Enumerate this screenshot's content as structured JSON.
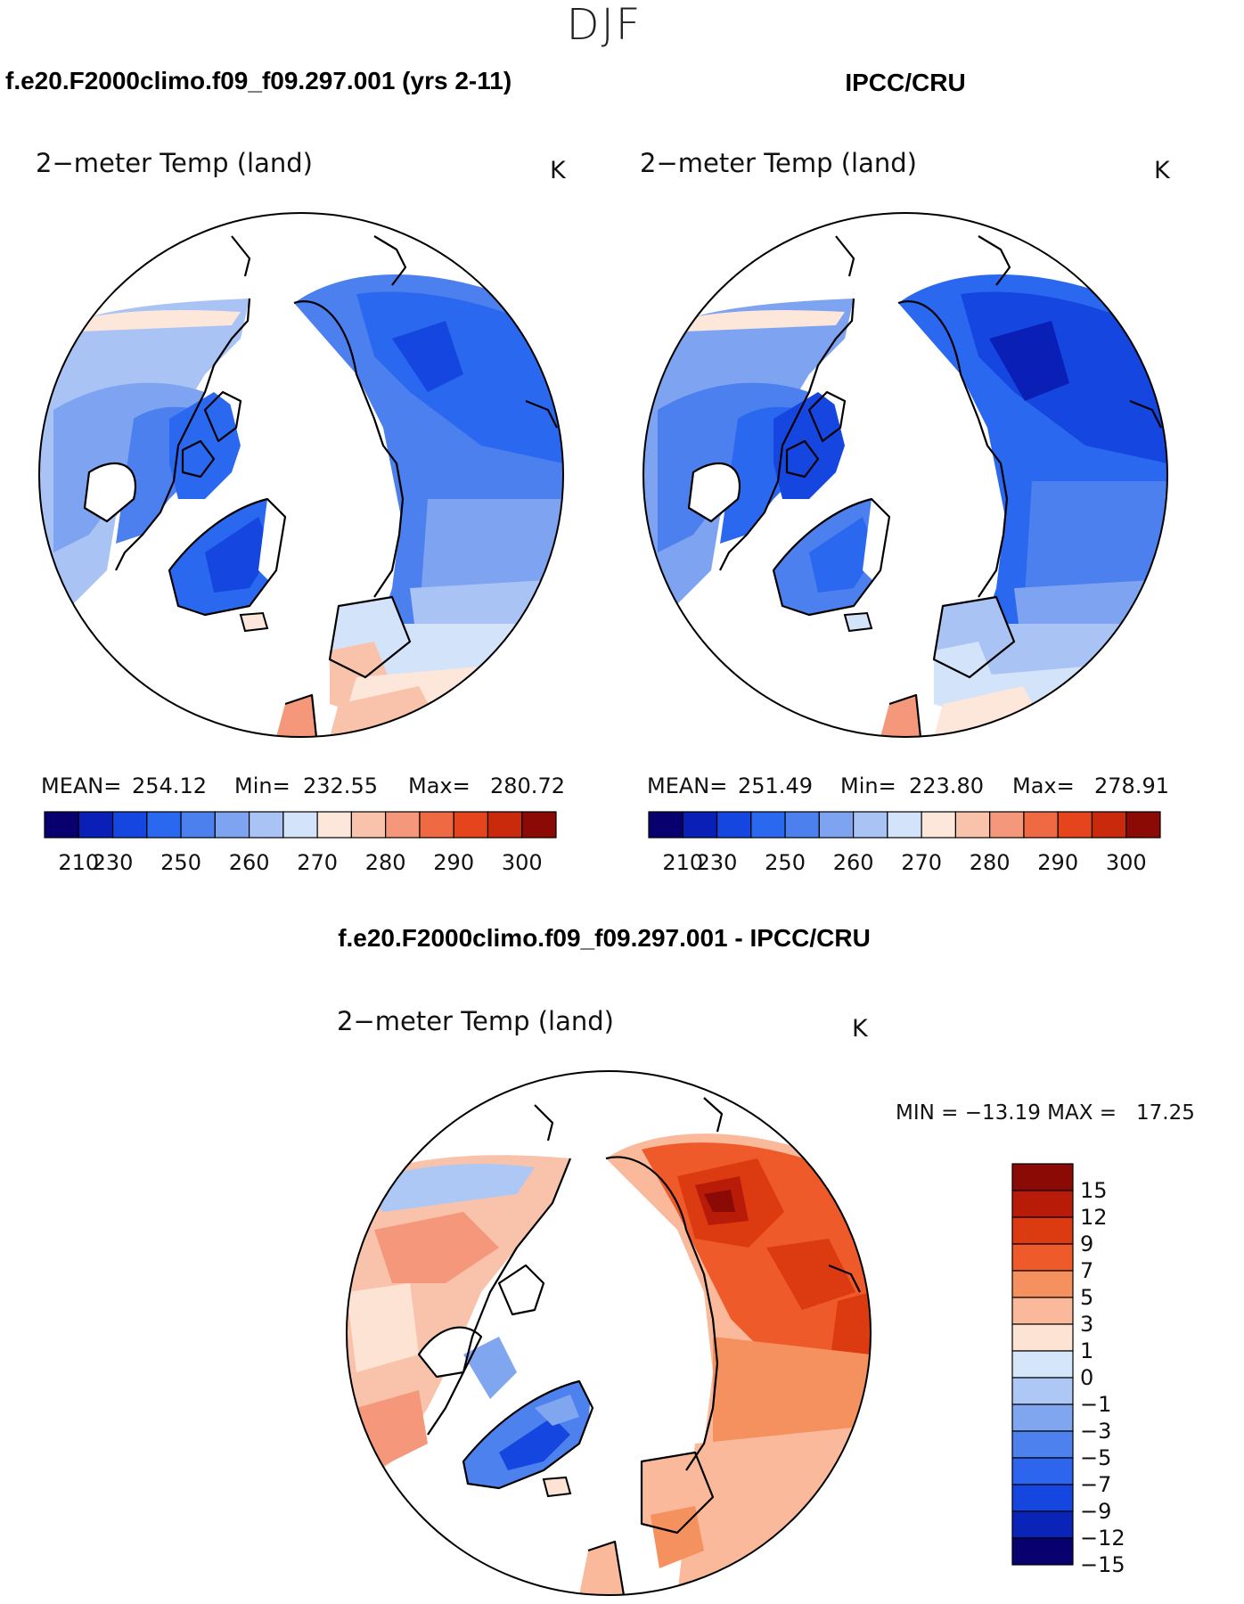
{
  "season": "DJF",
  "units": "K",
  "panels": [
    {
      "heading": "f.e20.F2000climo.f09_f09.297.001 (yrs 2-11)",
      "title": "2−meter Temp (land)",
      "units": "K",
      "stats": {
        "mean_label": "MEAN=",
        "mean": "254.12",
        "min_label": "Min=",
        "min": "232.55",
        "max_label": "Max=",
        "max": "280.72"
      }
    },
    {
      "heading": "IPCC/CRU",
      "title": "2−meter Temp (land)",
      "units": "K",
      "stats": {
        "mean_label": "MEAN=",
        "mean": "251.49",
        "min_label": "Min=",
        "min": "223.80",
        "max_label": "Max=",
        "max": "278.91"
      }
    }
  ],
  "abs_colorbar": {
    "colors": [
      "#08006e",
      "#0a1fb5",
      "#1546e0",
      "#2b68f0",
      "#4c80ee",
      "#7ea3f0",
      "#a9c3f4",
      "#d3e3fa",
      "#fde6da",
      "#f9c3ab",
      "#f5977b",
      "#ef6a43",
      "#e6441c",
      "#c92a0c",
      "#8b0a05"
    ],
    "ticks": [
      "210",
      "230",
      "250",
      "260",
      "270",
      "280",
      "290",
      "300"
    ]
  },
  "diff_panel": {
    "heading": "f.e20.F2000climo.f09_f09.297.001 - IPCC/CRU",
    "title": "2−meter Temp (land)",
    "units": "K",
    "minmax": "MIN = −13.19 MAX =   17.25"
  },
  "diff_colorbar": {
    "colors_top_to_bottom": [
      "#8b0a05",
      "#b81c08",
      "#dc3a10",
      "#ef5a2a",
      "#f5905f",
      "#f9b99a",
      "#fde3d3",
      "#d6e6fa",
      "#adc8f5",
      "#80a6f0",
      "#4d82ee",
      "#2d65ee",
      "#1646e0",
      "#0a24b8",
      "#08006e"
    ],
    "labels_top_to_bottom": [
      "15",
      "12",
      "9",
      "7",
      "5",
      "3",
      "1",
      "0",
      "−1",
      "−3",
      "−5",
      "−7",
      "−9",
      "−12",
      "−15"
    ]
  }
}
